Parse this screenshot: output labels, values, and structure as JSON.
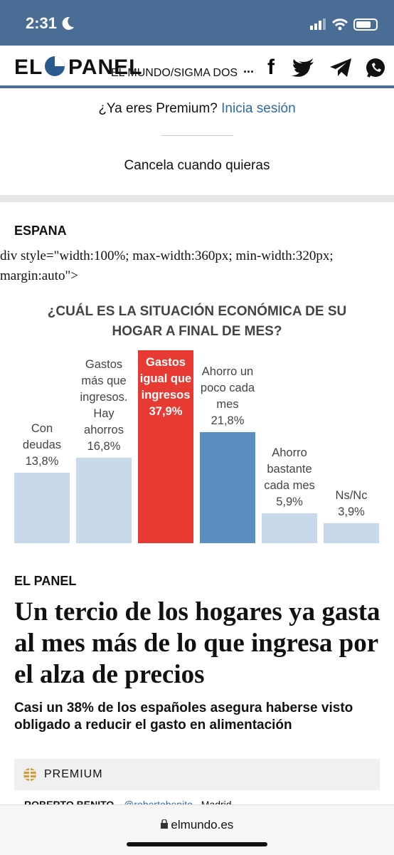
{
  "status_bar": {
    "time": "2:31"
  },
  "header": {
    "logo_left": "EL",
    "logo_right": "PANEL",
    "source": "EL MUNDO/SIGMA DOS",
    "more": "..."
  },
  "premium": {
    "question": "¿Ya eres Premium?",
    "login": "Inicia sesión",
    "cancel": "Cancela cuando quieras"
  },
  "section": "ESPANA",
  "raw_markup": "div style=\"width:100%; max-width:360px; min-width:320px; margin:auto\">",
  "chart_data": {
    "type": "bar",
    "title": "¿CUÁL ES LA SITUACIÓN ECONÓMICA DE SU HOGAR A FINAL DE MES?",
    "categories": [
      "Con deudas",
      "Gastos más que ingresos. Hay ahorros",
      "Gastos igual que ingresos",
      "Ahorro un poco cada mes",
      "Ahorro bastante cada mes",
      "Ns/Nc"
    ],
    "values": [
      13.8,
      16.8,
      37.9,
      21.8,
      5.9,
      3.9
    ],
    "value_labels": [
      "13,8%",
      "16,8%",
      "37,9%",
      "21,8%",
      "5,9%",
      "3,9%"
    ],
    "colors": [
      "#c8d9ec",
      "#c8d9ec",
      "#e63a33",
      "#5b8fc1",
      "#c8d9ec",
      "#c8d9ec"
    ]
  },
  "article": {
    "kicker": "EL PANEL",
    "headline": "Un tercio de los hogares ya gasta al mes más de lo que ingresa por el alza de precios",
    "subheadline": "Casi un 38% de los españoles asegura haberse visto obligado a reducir el gasto en alimentación",
    "badge": "PREMIUM",
    "author": "ROBERTO BENITO",
    "handle": "@robertobenito",
    "location": "Madrid"
  },
  "browser": {
    "url": "elmundo.es"
  }
}
